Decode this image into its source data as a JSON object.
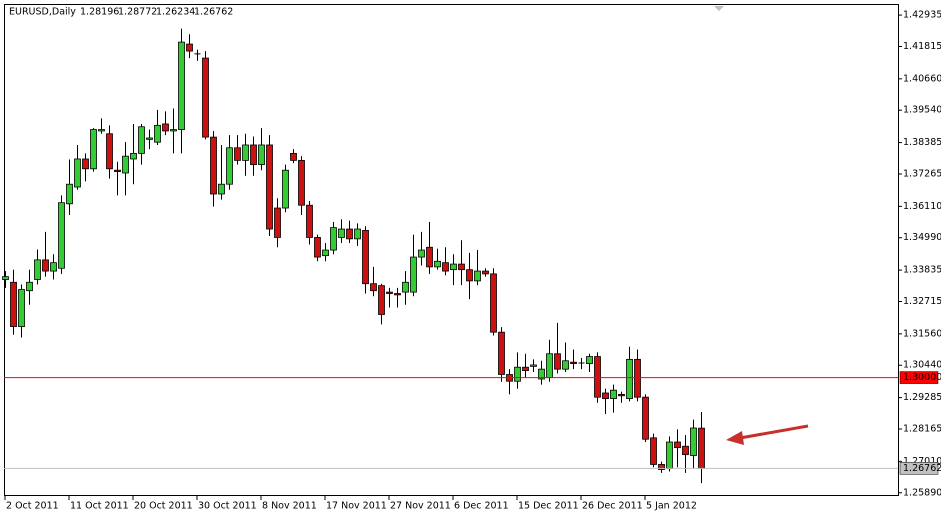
{
  "chart_data": {
    "type": "candlestick",
    "symbol": "EURUSD,Daily",
    "last_bar": {
      "open": 1.28196,
      "high": 1.28772,
      "low": 1.26234,
      "close": 1.26762
    },
    "categories": [
      "2 Oct 2011",
      null,
      null,
      null,
      null,
      null,
      null,
      null,
      "11 Oct 2011",
      null,
      null,
      null,
      null,
      null,
      null,
      null,
      "20 Oct 2011",
      null,
      null,
      null,
      null,
      null,
      null,
      null,
      "30 Oct 2011",
      null,
      null,
      null,
      null,
      null,
      null,
      null,
      "8 Nov 2011",
      null,
      null,
      null,
      null,
      null,
      null,
      null,
      "17 Nov 2011",
      null,
      null,
      null,
      null,
      null,
      null,
      null,
      "27 Nov 2011",
      null,
      null,
      null,
      null,
      null,
      null,
      null,
      "6 Dec 2011",
      null,
      null,
      null,
      null,
      null,
      null,
      null,
      "15 Dec 2011",
      null,
      null,
      null,
      null,
      null,
      null,
      null,
      "26 Dec 2011",
      null,
      null,
      null,
      null,
      null,
      null,
      null,
      "5 Jan 2012",
      null,
      null,
      null,
      null,
      null,
      null,
      null
    ],
    "open": [
      1.335,
      1.334,
      1.3182,
      1.331,
      1.335,
      1.342,
      1.338,
      1.339,
      1.362,
      1.368,
      1.378,
      1.3745,
      1.388,
      1.387,
      1.374,
      1.373,
      1.378,
      1.38,
      1.385,
      1.384,
      1.3905,
      1.388,
      1.3885,
      1.419,
      1.4155,
      1.414,
      1.3858,
      1.3655,
      1.369,
      1.382,
      1.3775,
      1.383,
      1.376,
      1.383,
      1.3605,
      1.3605,
      1.38,
      1.3775,
      1.3615,
      1.35,
      1.3435,
      1.3455,
      1.35,
      1.353,
      1.3495,
      1.3525,
      1.3335,
      1.3328,
      1.3305,
      1.33,
      1.3305,
      1.3305,
      1.343,
      1.3465,
      1.3395,
      1.341,
      1.3385,
      1.3405,
      1.3385,
      1.3345,
      1.338,
      1.337,
      1.3162,
      1.3011,
      1.2987,
      1.3037,
      1.304,
      1.2995,
      1.3,
      1.3085,
      1.303,
      1.3055,
      1.305,
      1.305,
      1.3075,
      1.2945,
      1.2925,
      1.294,
      1.2925,
      1.3065,
      1.293,
      1.2785,
      1.269,
      1.2675,
      1.277,
      1.2755,
      1.2722,
      1.28196
    ],
    "high": [
      1.338,
      1.3385,
      1.3332,
      1.3385,
      1.3457,
      1.352,
      1.344,
      1.365,
      1.3778,
      1.383,
      1.38,
      1.389,
      1.3925,
      1.39,
      1.377,
      1.384,
      1.3905,
      1.3905,
      1.3885,
      1.3955,
      1.395,
      1.396,
      1.4245,
      1.4225,
      1.417,
      1.4165,
      1.388,
      1.383,
      1.3865,
      1.3865,
      1.387,
      1.386,
      1.389,
      1.3865,
      1.364,
      1.376,
      1.3815,
      1.379,
      1.363,
      1.351,
      1.348,
      1.3555,
      1.3565,
      1.356,
      1.355,
      1.354,
      1.3395,
      1.3335,
      1.332,
      1.332,
      1.338,
      1.351,
      1.352,
      1.3555,
      1.346,
      1.3465,
      1.344,
      1.349,
      1.3445,
      1.3455,
      1.339,
      1.339,
      1.318,
      1.303,
      1.309,
      1.3085,
      1.3065,
      1.306,
      1.3135,
      1.3195,
      1.3125,
      1.31,
      1.307,
      1.3085,
      1.309,
      1.296,
      1.2975,
      1.295,
      1.311,
      1.31,
      1.294,
      1.28,
      1.27,
      1.279,
      1.2815,
      1.2795,
      1.285,
      1.28772
    ],
    "low": [
      1.332,
      1.3153,
      1.3143,
      1.326,
      1.3332,
      1.336,
      1.335,
      1.337,
      1.358,
      1.367,
      1.37,
      1.3735,
      1.387,
      1.371,
      1.365,
      1.365,
      1.369,
      1.376,
      1.3815,
      1.383,
      1.3865,
      1.38,
      1.38,
      1.414,
      1.413,
      1.385,
      1.361,
      1.3635,
      1.367,
      1.376,
      1.372,
      1.372,
      1.374,
      1.3505,
      1.3465,
      1.359,
      1.3765,
      1.358,
      1.3475,
      1.3415,
      1.3415,
      1.344,
      1.348,
      1.348,
      1.347,
      1.33,
      1.329,
      1.319,
      1.325,
      1.325,
      1.326,
      1.329,
      1.34,
      1.337,
      1.3385,
      1.3365,
      1.333,
      1.333,
      1.328,
      1.333,
      1.336,
      1.315,
      1.2985,
      1.294,
      1.296,
      1.3,
      1.302,
      1.2975,
      1.2985,
      1.3015,
      1.302,
      1.303,
      1.303,
      1.302,
      1.291,
      1.287,
      1.2875,
      1.291,
      1.2915,
      1.2915,
      1.277,
      1.268,
      1.266,
      1.2665,
      1.268,
      1.266,
      1.2675,
      1.26234
    ],
    "close": [
      1.336,
      1.3182,
      1.3314,
      1.334,
      1.342,
      1.338,
      1.341,
      1.3624,
      1.369,
      1.378,
      1.3745,
      1.3885,
      1.3885,
      1.3745,
      1.3735,
      1.379,
      1.38,
      1.3895,
      1.3855,
      1.39,
      1.388,
      1.3885,
      1.4197,
      1.4165,
      1.4155,
      1.3858,
      1.3655,
      1.369,
      1.382,
      1.3775,
      1.383,
      1.376,
      1.383,
      1.353,
      1.35,
      1.374,
      1.3775,
      1.3615,
      1.35,
      1.343,
      1.3455,
      1.3535,
      1.353,
      1.3495,
      1.353,
      1.3335,
      1.331,
      1.3225,
      1.33,
      1.3295,
      1.334,
      1.343,
      1.3455,
      1.3395,
      1.3415,
      1.338,
      1.3405,
      1.3385,
      1.3345,
      1.338,
      1.337,
      1.3162,
      1.3011,
      1.2987,
      1.3037,
      1.3025,
      1.3045,
      1.303,
      1.3085,
      1.303,
      1.306,
      1.305,
      1.3052,
      1.3075,
      1.293,
      1.2925,
      1.2955,
      1.2935,
      1.3065,
      1.293,
      1.278,
      1.269,
      1.2672,
      1.277,
      1.275,
      1.2725,
      1.282,
      1.26762
    ],
    "up_color": "#33cc33",
    "down_color": "#cc1111",
    "ylim": [
      1.2581,
      1.4333
    ],
    "yticks": [
      1.42935,
      1.41815,
      {
        "value": 1.4066,
        "label": "1.40660"
      },
      {
        "value": 1.3954,
        "label": "1.39540"
      },
      1.38385,
      1.37265,
      {
        "value": 1.3611,
        "label": "1.36110"
      },
      {
        "value": 1.3499,
        "label": "1.34990"
      },
      1.33835,
      1.32715,
      {
        "value": 1.3156,
        "label": "1.31560"
      },
      {
        "value": 1.3044,
        "label": "1.30440"
      },
      1.29285,
      1.28165,
      {
        "value": 1.2701,
        "label": "1.27010"
      },
      {
        "value": 1.2589,
        "label": "1.25890"
      }
    ],
    "hlines": [
      {
        "value": 1.3,
        "label": "1.30000",
        "color": "#ff0000",
        "label_color": "#ffffff"
      },
      {
        "value": 1.26762,
        "label": "1.26762",
        "color": "#c0c0c0",
        "label_color": "#000000"
      }
    ]
  }
}
